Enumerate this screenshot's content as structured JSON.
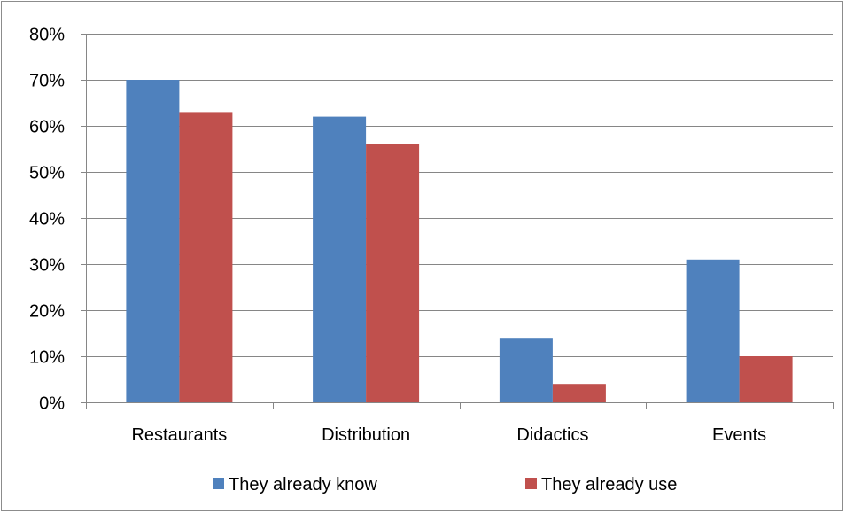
{
  "chart_data": {
    "type": "bar",
    "categories": [
      "Restaurants",
      "Distribution",
      "Didactics",
      "Events"
    ],
    "series": [
      {
        "name": "They already know",
        "values": [
          70,
          62,
          14,
          31
        ],
        "color": "#4f81bd"
      },
      {
        "name": "They already use",
        "values": [
          63,
          56,
          4,
          10
        ],
        "color": "#c0504d"
      }
    ],
    "ylim": [
      0,
      80
    ],
    "yticks": [
      0,
      10,
      20,
      30,
      40,
      50,
      60,
      70,
      80
    ],
    "ytick_labels": [
      "0%",
      "10%",
      "20%",
      "30%",
      "40%",
      "50%",
      "60%",
      "70%",
      "80%"
    ],
    "grid": true,
    "legend_position": "bottom",
    "gridline_color": "#868686",
    "axis_color": "#868686"
  }
}
